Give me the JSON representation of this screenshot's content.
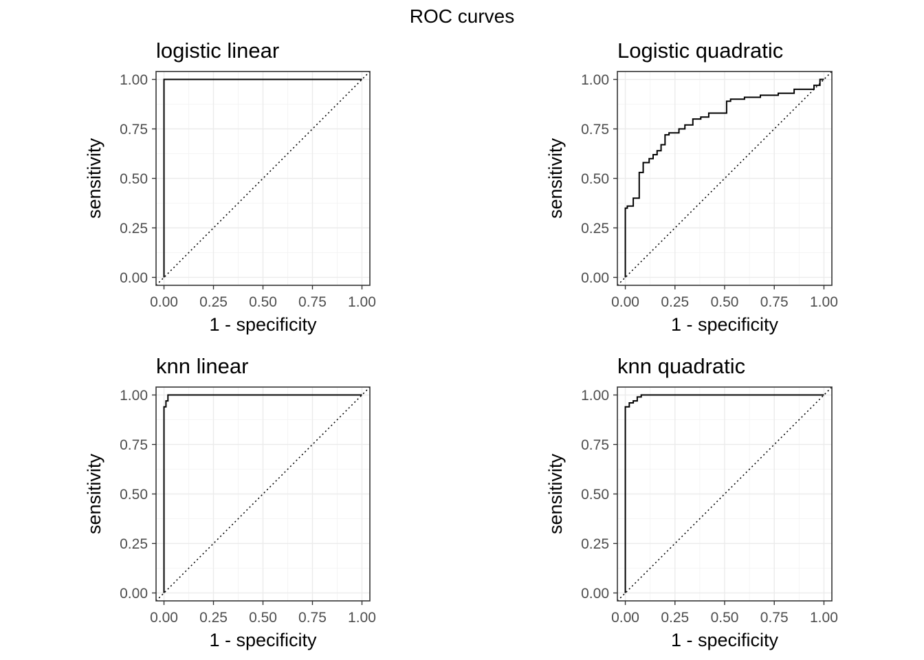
{
  "title": "ROC curves",
  "chart_data": [
    {
      "type": "line",
      "title": "logistic linear",
      "xlabel": "1 - specificity",
      "ylabel": "sensitivity",
      "xlim": [
        0,
        1
      ],
      "ylim": [
        0,
        1
      ],
      "xticks": [
        "0.00",
        "0.25",
        "0.50",
        "0.75",
        "1.00"
      ],
      "yticks": [
        "0.00",
        "0.25",
        "0.50",
        "0.75",
        "1.00"
      ],
      "grid": true,
      "legend": "none",
      "reference_line": "diagonal dotted",
      "curve": {
        "x": [
          0,
          0,
          1
        ],
        "y": [
          0,
          1,
          1
        ]
      }
    },
    {
      "type": "line",
      "title": "Logistic quadratic",
      "xlabel": "1 - specificity",
      "ylabel": "sensitivity",
      "xlim": [
        0,
        1
      ],
      "ylim": [
        0,
        1
      ],
      "xticks": [
        "0.00",
        "0.25",
        "0.50",
        "0.75",
        "1.00"
      ],
      "yticks": [
        "0.00",
        "0.25",
        "0.50",
        "0.75",
        "1.00"
      ],
      "grid": true,
      "legend": "none",
      "reference_line": "diagonal dotted",
      "curve": {
        "x": [
          0,
          0,
          0.01,
          0.01,
          0.04,
          0.04,
          0.07,
          0.07,
          0.09,
          0.09,
          0.12,
          0.12,
          0.14,
          0.14,
          0.16,
          0.16,
          0.18,
          0.18,
          0.2,
          0.2,
          0.22,
          0.22,
          0.27,
          0.27,
          0.3,
          0.3,
          0.34,
          0.34,
          0.38,
          0.38,
          0.42,
          0.42,
          0.51,
          0.51,
          0.53,
          0.53,
          0.6,
          0.6,
          0.68,
          0.68,
          0.77,
          0.77,
          0.85,
          0.85,
          0.95,
          0.95,
          0.98,
          0.98,
          1
        ],
        "y": [
          0,
          0.35,
          0.35,
          0.36,
          0.36,
          0.4,
          0.4,
          0.53,
          0.53,
          0.58,
          0.58,
          0.6,
          0.6,
          0.62,
          0.62,
          0.64,
          0.64,
          0.67,
          0.67,
          0.72,
          0.72,
          0.73,
          0.73,
          0.75,
          0.75,
          0.77,
          0.77,
          0.8,
          0.8,
          0.81,
          0.81,
          0.83,
          0.83,
          0.89,
          0.89,
          0.9,
          0.9,
          0.91,
          0.91,
          0.92,
          0.92,
          0.93,
          0.93,
          0.95,
          0.95,
          0.97,
          0.97,
          1,
          1
        ]
      }
    },
    {
      "type": "line",
      "title": "knn linear",
      "xlabel": "1 - specificity",
      "ylabel": "sensitivity",
      "xlim": [
        0,
        1
      ],
      "ylim": [
        0,
        1
      ],
      "xticks": [
        "0.00",
        "0.25",
        "0.50",
        "0.75",
        "1.00"
      ],
      "yticks": [
        "0.00",
        "0.25",
        "0.50",
        "0.75",
        "1.00"
      ],
      "grid": true,
      "legend": "none",
      "reference_line": "diagonal dotted",
      "curve": {
        "x": [
          0,
          0,
          0.01,
          0.01,
          0.02,
          0.02,
          1
        ],
        "y": [
          0,
          0.94,
          0.94,
          0.97,
          0.97,
          1,
          1
        ]
      }
    },
    {
      "type": "line",
      "title": "knn quadratic",
      "xlabel": "1 - specificity",
      "ylabel": "sensitivity",
      "xlim": [
        0,
        1
      ],
      "ylim": [
        0,
        1
      ],
      "xticks": [
        "0.00",
        "0.25",
        "0.50",
        "0.75",
        "1.00"
      ],
      "yticks": [
        "0.00",
        "0.25",
        "0.50",
        "0.75",
        "1.00"
      ],
      "grid": true,
      "legend": "none",
      "reference_line": "diagonal dotted",
      "curve": {
        "x": [
          0,
          0,
          0.02,
          0.02,
          0.04,
          0.04,
          0.06,
          0.06,
          0.08,
          0.08,
          1
        ],
        "y": [
          0,
          0.94,
          0.94,
          0.96,
          0.96,
          0.97,
          0.97,
          0.99,
          0.99,
          1,
          1
        ]
      }
    }
  ]
}
